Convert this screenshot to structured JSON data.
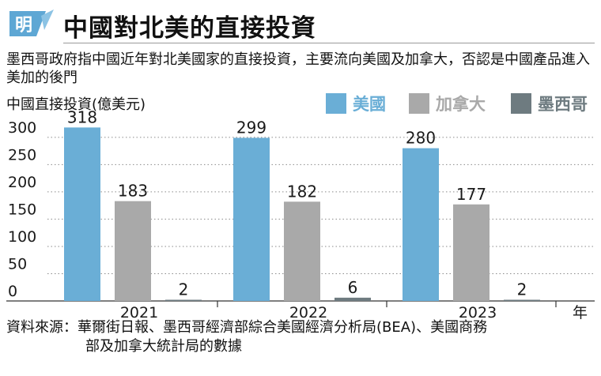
{
  "header": {
    "logo_text": "明",
    "title": "中國對北美的直接投資"
  },
  "subtitle": "墨西哥政府指中國近年對北美國家的直接投資，主要流向美國及加拿大，否認是中國產品進入美加的後門",
  "unit_label": "中國直接投資(億美元)",
  "source": {
    "label": "資料來源：",
    "line1": "華爾街日報、墨西哥經濟部綜合美國經濟分析局(BEA)、美國商務",
    "line2": "部及加拿大統計局的數據"
  },
  "colors": {
    "usa": "#6aaed6",
    "canada": "#a9a9a9",
    "mexico": "#6e7b80",
    "logo": "#5ea7d4"
  },
  "chart_data": {
    "type": "bar",
    "categories": [
      "2021",
      "2022",
      "2023"
    ],
    "xlabel": "年",
    "ylabel": "中國直接投資(億美元)",
    "ylim": [
      0,
      320
    ],
    "yticks": [
      0,
      50,
      100,
      150,
      200,
      250,
      300
    ],
    "grid": "horizontal dotted",
    "legend_position": "top-right",
    "series": [
      {
        "name": "美國",
        "values": [
          318,
          299,
          280
        ]
      },
      {
        "name": "加拿大",
        "values": [
          183,
          182,
          177
        ]
      },
      {
        "name": "墨西哥",
        "values": [
          2,
          6,
          2
        ]
      }
    ]
  }
}
